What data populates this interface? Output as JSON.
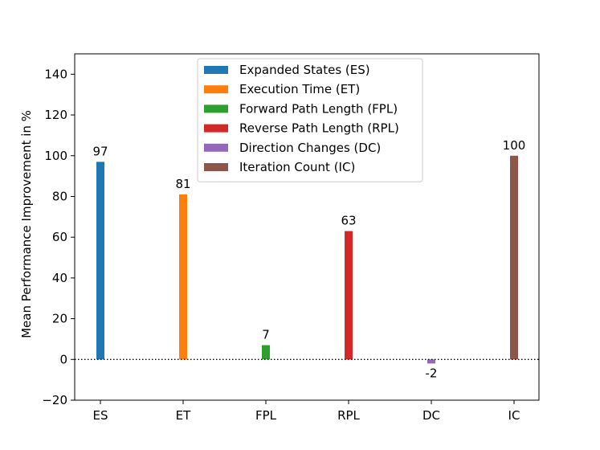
{
  "chart_data": {
    "type": "bar",
    "title": "",
    "xlabel": "",
    "ylabel": "Mean Performance Improvement in %",
    "ylim": [
      -20,
      150
    ],
    "yticks": [
      -20,
      0,
      20,
      40,
      60,
      80,
      100,
      120,
      140
    ],
    "grid": false,
    "legend_position": "top-center",
    "categories": [
      "ES",
      "ET",
      "FPL",
      "RPL",
      "DC",
      "IC"
    ],
    "series": [
      {
        "name": "Expanded States (ES)",
        "color": "#1f77b4",
        "values": [
          97,
          null,
          null,
          null,
          null,
          null
        ]
      },
      {
        "name": "Execution Time (ET)",
        "color": "#ff7f0e",
        "values": [
          null,
          81,
          null,
          null,
          null,
          null
        ]
      },
      {
        "name": "Forward Path Length (FPL)",
        "color": "#2ca02c",
        "values": [
          null,
          null,
          7,
          null,
          null,
          null
        ]
      },
      {
        "name": "Reverse Path Length (RPL)",
        "color": "#d62728",
        "values": [
          null,
          null,
          null,
          63,
          null,
          null
        ]
      },
      {
        "name": "Direction Changes (DC)",
        "color": "#9467bd",
        "values": [
          null,
          null,
          null,
          null,
          -2,
          null
        ]
      },
      {
        "name": "Iteration Count (IC)",
        "color": "#8c564b",
        "values": [
          null,
          null,
          null,
          null,
          null,
          100
        ]
      }
    ],
    "data_labels": [
      "97",
      "81",
      "7",
      "63",
      "-2",
      "100"
    ],
    "reference_line": {
      "y": 0,
      "style": "dotted"
    }
  }
}
